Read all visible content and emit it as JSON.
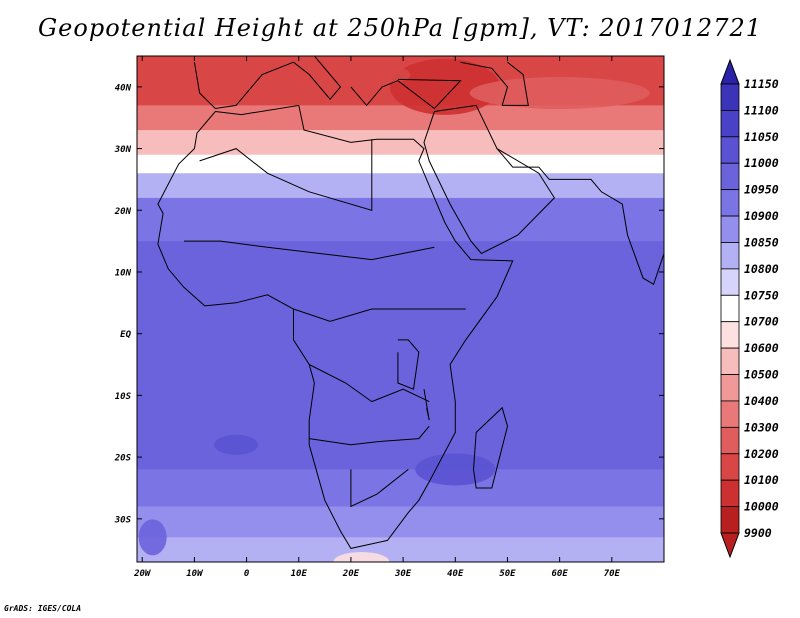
{
  "title": "Geopotential Height at 250hPa [gpm], VT: 2017012721",
  "credit": "GrADS: IGES/COLA",
  "map": {
    "lon_range": [
      -21,
      80
    ],
    "lat_range": [
      -37,
      45
    ],
    "lon_ticks": [
      {
        "value": -20,
        "label": "20W"
      },
      {
        "value": -10,
        "label": "10W"
      },
      {
        "value": 0,
        "label": "0"
      },
      {
        "value": 10,
        "label": "10E"
      },
      {
        "value": 20,
        "label": "20E"
      },
      {
        "value": 30,
        "label": "30E"
      },
      {
        "value": 40,
        "label": "40E"
      },
      {
        "value": 50,
        "label": "50E"
      },
      {
        "value": 60,
        "label": "60E"
      },
      {
        "value": 70,
        "label": "70E"
      }
    ],
    "lat_ticks": [
      {
        "value": 40,
        "label": "40N"
      },
      {
        "value": 30,
        "label": "30N"
      },
      {
        "value": 20,
        "label": "20N"
      },
      {
        "value": 10,
        "label": "10N"
      },
      {
        "value": 0,
        "label": "EQ"
      },
      {
        "value": -10,
        "label": "10S"
      },
      {
        "value": -20,
        "label": "20S"
      },
      {
        "value": -30,
        "label": "30S"
      }
    ]
  },
  "colorbar": {
    "levels": [
      "11150",
      "11100",
      "11050",
      "11000",
      "10950",
      "10900",
      "10850",
      "10800",
      "10750",
      "10700",
      "10600",
      "10500",
      "10400",
      "10300",
      "10200",
      "10100",
      "10000",
      "9900"
    ],
    "colors": [
      "#2a22a8",
      "#3b33b8",
      "#4a42c6",
      "#5a52d2",
      "#6a63dc",
      "#7b74e4",
      "#948eec",
      "#b4b0f4",
      "#d6d4fa",
      "#ffffff",
      "#fde0e0",
      "#f7bcbc",
      "#f19999",
      "#e97979",
      "#e05d5d",
      "#d84646",
      "#cd3030",
      "#b82020"
    ]
  },
  "chart_data": {
    "type": "heatmap",
    "title": "Geopotential Height at 250hPa [gpm], VT: 2017012721",
    "lon_range": [
      -21,
      80
    ],
    "lat_range": [
      -37,
      45
    ],
    "bands": [
      {
        "lat_min": 37,
        "lat_max": 45,
        "value_gpm": 10100
      },
      {
        "lat_min": 33,
        "lat_max": 37,
        "value_gpm": 10300
      },
      {
        "lat_min": 29,
        "lat_max": 33,
        "value_gpm": 10500
      },
      {
        "lat_min": 26,
        "lat_max": 29,
        "value_gpm": 10700
      },
      {
        "lat_min": 22,
        "lat_max": 26,
        "value_gpm": 10800
      },
      {
        "lat_min": 15,
        "lat_max": 22,
        "value_gpm": 10900
      },
      {
        "lat_min": -12,
        "lat_max": 15,
        "value_gpm": 10950
      },
      {
        "lat_min": -22,
        "lat_max": -12,
        "value_gpm": 10950
      },
      {
        "lat_min": -28,
        "lat_max": -22,
        "value_gpm": 10900
      },
      {
        "lat_min": -33,
        "lat_max": -28,
        "value_gpm": 10850
      },
      {
        "lat_min": -37,
        "lat_max": -33,
        "value_gpm": 10800
      }
    ],
    "features": [
      {
        "lon": 38,
        "lat": 40,
        "value_gpm": 10000
      },
      {
        "lon": 40,
        "lat": -22,
        "value_gpm": 11000
      },
      {
        "lon": 22,
        "lat": -37,
        "value_gpm": 10600
      }
    ]
  }
}
